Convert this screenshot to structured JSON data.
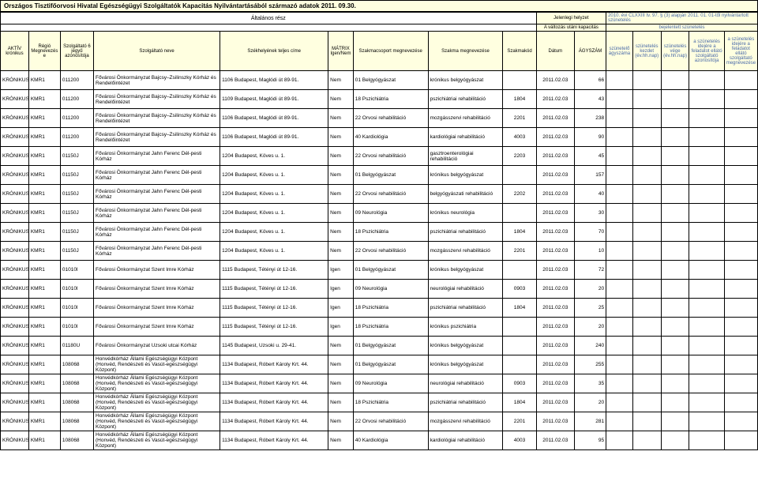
{
  "watermark_text": "AR",
  "title": "Országos Tisztifőorvosi Hivatal Egészségügyi Szolgáltatók Kapacitás Nyilvántartásából származó adatok 2011. 09.30.",
  "band": {
    "altalanos": "Általános rész",
    "jelenlegi": "Jelenlegi helyzet",
    "law": "2010. évi CLXXIII tv. 97. § (3) alapján 2011. 01. 01-től nyilvántartott szünetelés",
    "valtozas": "A változás utáni kapacitás",
    "bejelentett": "bejelentett szünetelés"
  },
  "headers": {
    "aktiv": "AKTÍV krónikus",
    "regio": "Régió Megnevezés e",
    "szolgid": "Szolgáltató 6 jegyű azonosítója",
    "nev": "Szolgáltató neve",
    "szek": "Székhelyének teljes címe",
    "matrix": "MÁTRIX Igen/Nem",
    "szakcs": "Szakmacsoport megnevezése",
    "szakmeg": "Szakma megnevezése",
    "szakkod": "Szakmakód",
    "datum": "Dátum",
    "agyszam": "ÁGYSZÁM",
    "szunagy": "szünetelő ágyszáma",
    "szunkezd": "szünetelés kezdet (év.hh.nap)",
    "szunveg": "szünetelés vége (év.hh.nap)",
    "felazo": "a szünetelés idejére a feladatot ellátó szolgáltató azonosítója",
    "felmeg": "a szünetelés idejére a feladatot ellátó szolgáltató megnevezése"
  },
  "nev_bajcsy": "Fővárosi Önkormányzat Bajcsy–Zsilinszky Kórház és Rendelőintézet",
  "nev_jahn": "Fővárosi Önkormányzat Jahn Ferenc Dél-pesti Kórház",
  "nev_szentimre": "Fővárosi Önkormányzat Szent Imre Kórház",
  "nev_uzsoki": "Fővárosi Önkormányzat Uzsoki utcai Kórház",
  "nev_honved": "Honvédkórház Állami Egészségügyi Központ (Honvéd, Rendészeti és Vasút-egészségügyi Központ)",
  "cim_bajcsy": "1106 Budapest, Maglódi út 89-91.",
  "cim_bajcsy2": "1109 Budapest, Maglódi út 89-91.",
  "cim_jahn": "1204 Budapest, Köves u. 1.",
  "cim_szentimre": "1115 Budapest, Tétényi út 12-16.",
  "cim_uzsoki": "1145 Budapest, Uzsoki u. 29-41.",
  "cim_honved": "1134 Budapest, Róbert Károly Krt. 44.",
  "rows": [
    {
      "a": "KRÓNIKUS",
      "r": "KMR1",
      "id": "011200",
      "nevRef": "nev_bajcsy",
      "cimRef": "cim_bajcsy",
      "m": "Nem",
      "cs": "01 Belgyógyászat",
      "meg": "krónikus belgyógyászat",
      "kod": "",
      "d": "2011.02.03",
      "agy": "66"
    },
    {
      "a": "KRÓNIKUS",
      "r": "KMR1",
      "id": "011200",
      "nevRef": "nev_bajcsy",
      "cimRef": "cim_bajcsy2",
      "m": "Nem",
      "cs": "18 Pszichiátria",
      "meg": "pszichiátriai rehabilitáció",
      "kod": "1804",
      "d": "2011.02.03",
      "agy": "43"
    },
    {
      "a": "KRÓNIKUS",
      "r": "KMR1",
      "id": "011200",
      "nevRef": "nev_bajcsy",
      "cimRef": "cim_bajcsy",
      "m": "Nem",
      "cs": "22 Orvosi rehabilitáció",
      "meg": "mozgásszervi rehabilitáció",
      "kod": "2201",
      "d": "2011.02.03",
      "agy": "238"
    },
    {
      "a": "KRÓNIKUS",
      "r": "KMR1",
      "id": "011200",
      "nevRef": "nev_bajcsy",
      "cimRef": "cim_bajcsy",
      "m": "Nem",
      "cs": "40 Kardiológia",
      "meg": "kardiológiai rehabilitáció",
      "kod": "4003",
      "d": "2011.02.03",
      "agy": "90"
    },
    {
      "a": "KRÓNIKUS",
      "r": "KMR1",
      "id": "01150J",
      "nevRef": "nev_jahn",
      "cimRef": "cim_jahn",
      "m": "Nem",
      "cs": "22 Orvosi rehabilitáció",
      "meg": "gasztroenterológiai rehabilitáció",
      "kod": "2203",
      "d": "2011.02.03",
      "agy": "45"
    },
    {
      "a": "KRÓNIKUS",
      "r": "KMR1",
      "id": "01150J",
      "nevRef": "nev_jahn",
      "cimRef": "cim_jahn",
      "m": "Nem",
      "cs": "01 Belgyógyászat",
      "meg": "krónikus belgyógyászat",
      "kod": "",
      "d": "2011.02.03",
      "agy": "157"
    },
    {
      "a": "KRÓNIKUS",
      "r": "KMR1",
      "id": "01150J",
      "nevRef": "nev_jahn",
      "cimRef": "cim_jahn",
      "m": "Nem",
      "cs": "22 Orvosi rehabilitáció",
      "meg": "belgyógyászati rehabilitáció",
      "kod": "2202",
      "d": "2011.02.03",
      "agy": "40"
    },
    {
      "a": "KRÓNIKUS",
      "r": "KMR1",
      "id": "01150J",
      "nevRef": "nev_jahn",
      "cimRef": "cim_jahn",
      "m": "Nem",
      "cs": "09 Neurológia",
      "meg": "krónikus neurológia",
      "kod": "",
      "d": "2011.02.03",
      "agy": "30"
    },
    {
      "a": "KRÓNIKUS",
      "r": "KMR1",
      "id": "01150J",
      "nevRef": "nev_jahn",
      "cimRef": "cim_jahn",
      "m": "Nem",
      "cs": "18 Pszichiátria",
      "meg": "pszichiátriai rehabilitáció",
      "kod": "1804",
      "d": "2011.02.03",
      "agy": "70"
    },
    {
      "a": "KRÓNIKUS",
      "r": "KMR1",
      "id": "01150J",
      "nevRef": "nev_jahn",
      "cimRef": "cim_jahn",
      "m": "Nem",
      "cs": "22 Orvosi rehabilitáció",
      "meg": "mozgásszervi rehabilitáció",
      "kod": "2201",
      "d": "2011.02.03",
      "agy": "10"
    },
    {
      "a": "KRÓNIKUS",
      "r": "KMR1",
      "id": "01010I",
      "nevRef": "nev_szentimre",
      "cimRef": "cim_szentimre",
      "m": "Igen",
      "cs": "01 Belgyógyászat",
      "meg": "krónikus belgyógyászat",
      "kod": "",
      "d": "2011.02.03",
      "agy": "72"
    },
    {
      "a": "KRÓNIKUS",
      "r": "KMR1",
      "id": "01010I",
      "nevRef": "nev_szentimre",
      "cimRef": "cim_szentimre",
      "m": "Igen",
      "cs": "09 Neurológia",
      "meg": "neurológiai rehabilitáció",
      "kod": "0903",
      "d": "2011.02.03",
      "agy": "20"
    },
    {
      "a": "KRÓNIKUS",
      "r": "KMR1",
      "id": "01010I",
      "nevRef": "nev_szentimre",
      "cimRef": "cim_szentimre",
      "m": "Igen",
      "cs": "18 Pszichiátria",
      "meg": "pszichiátriai rehabilitáció",
      "kod": "1804",
      "d": "2011.02.03",
      "agy": "25"
    },
    {
      "a": "KRÓNIKUS",
      "r": "KMR1",
      "id": "01010I",
      "nevRef": "nev_szentimre",
      "cimRef": "cim_szentimre",
      "m": "Igen",
      "cs": "18 Pszichiátria",
      "meg": "krónikus pszichiátria",
      "kod": "",
      "d": "2011.02.03",
      "agy": "20"
    },
    {
      "a": "KRÓNIKUS",
      "r": "KMR1",
      "id": "01180U",
      "nevRef": "nev_uzsoki",
      "cimRef": "cim_uzsoki",
      "m": "Nem",
      "cs": "01 Belgyógyászat",
      "meg": "krónikus belgyógyászat",
      "kod": "",
      "d": "2011.02.03",
      "agy": "240"
    },
    {
      "a": "KRÓNIKUS",
      "r": "KMR1",
      "id": "108068",
      "nevRef": "nev_honved",
      "cimRef": "cim_honved",
      "m": "Nem",
      "cs": "01 Belgyógyászat",
      "meg": "krónikus belgyógyászat",
      "kod": "",
      "d": "2011.02.03",
      "agy": "255"
    },
    {
      "a": "KRÓNIKUS",
      "r": "KMR1",
      "id": "108068",
      "nevRef": "nev_honved",
      "cimRef": "cim_honved",
      "m": "Nem",
      "cs": "09 Neurológia",
      "meg": "neurológiai rehabilitáció",
      "kod": "0903",
      "d": "2011.02.03",
      "agy": "35"
    },
    {
      "a": "KRÓNIKUS",
      "r": "KMR1",
      "id": "108068",
      "nevRef": "nev_honved",
      "cimRef": "cim_honved",
      "m": "Nem",
      "cs": "18 Pszichiátria",
      "meg": "pszichiátriai rehabilitáció",
      "kod": "1804",
      "d": "2011.02.03",
      "agy": "20"
    },
    {
      "a": "KRÓNIKUS",
      "r": "KMR1",
      "id": "108068",
      "nevRef": "nev_honved",
      "cimRef": "cim_honved",
      "m": "Nem",
      "cs": "22 Orvosi rehabilitáció",
      "meg": "mozgásszervi rehabilitáció",
      "kod": "2201",
      "d": "2011.02.03",
      "agy": "281"
    },
    {
      "a": "KRÓNIKUS",
      "r": "KMR1",
      "id": "108068",
      "nevRef": "nev_honved",
      "cimRef": "cim_honved",
      "m": "Nem",
      "cs": "40 Kardiológia",
      "meg": "kardiológiai rehabilitáció",
      "kod": "4003",
      "d": "2011.02.03",
      "agy": "95"
    }
  ]
}
